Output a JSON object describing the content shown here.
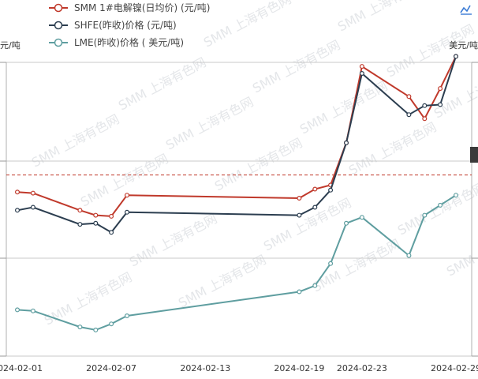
{
  "toolbar": {
    "icon": "line-chart-icon"
  },
  "chart_data": {
    "type": "line",
    "title": "",
    "watermark": "SMM 上海有色网",
    "left_axis_unit": "元/吨",
    "right_axis_unit": "美元/吨",
    "x": [
      "2024-02-01",
      "2024-02-02",
      "2024-02-05",
      "2024-02-06",
      "2024-02-07",
      "2024-02-08",
      "2024-02-19",
      "2024-02-20",
      "2024-02-21",
      "2024-02-22",
      "2024-02-23",
      "2024-02-26",
      "2024-02-27",
      "2024-02-28",
      "2024-02-29"
    ],
    "x_tick_labels": [
      "2024-02-01",
      "2024-02-07",
      "2024-02-13",
      "2024-02-19",
      "2024-02-23",
      "2024-02-29"
    ],
    "series": [
      {
        "name": "SMM 1#电解镍(日均价)   (元/吨)",
        "axis": "left",
        "color": "#c0392b",
        "values": [
          128950,
          128900,
          128050,
          127800,
          127750,
          128800,
          128650,
          129100,
          129300,
          131400,
          135200,
          133700,
          132600,
          134100,
          135700
        ]
      },
      {
        "name": "SHFE(昨收)价格   (元/吨)",
        "axis": "left",
        "color": "#2c3e50",
        "values": [
          128050,
          128200,
          127350,
          127400,
          126950,
          127950,
          127800,
          128200,
          129050,
          131400,
          134850,
          132800,
          133250,
          133300,
          135700
        ]
      },
      {
        "name": "LME(昨收)价格   (  美元/吨)",
        "axis": "left",
        "color": "#5f9ea0",
        "values": [
          123100,
          123050,
          122250,
          122100,
          122400,
          122800,
          124000,
          124300,
          125400,
          127400,
          127700,
          125800,
          127800,
          128300,
          128800
        ]
      }
    ],
    "reference_line": {
      "value": 129800,
      "color": "#c0392b",
      "style": "dashed"
    },
    "ylim": [
      120800,
      135400
    ],
    "grid": true
  }
}
